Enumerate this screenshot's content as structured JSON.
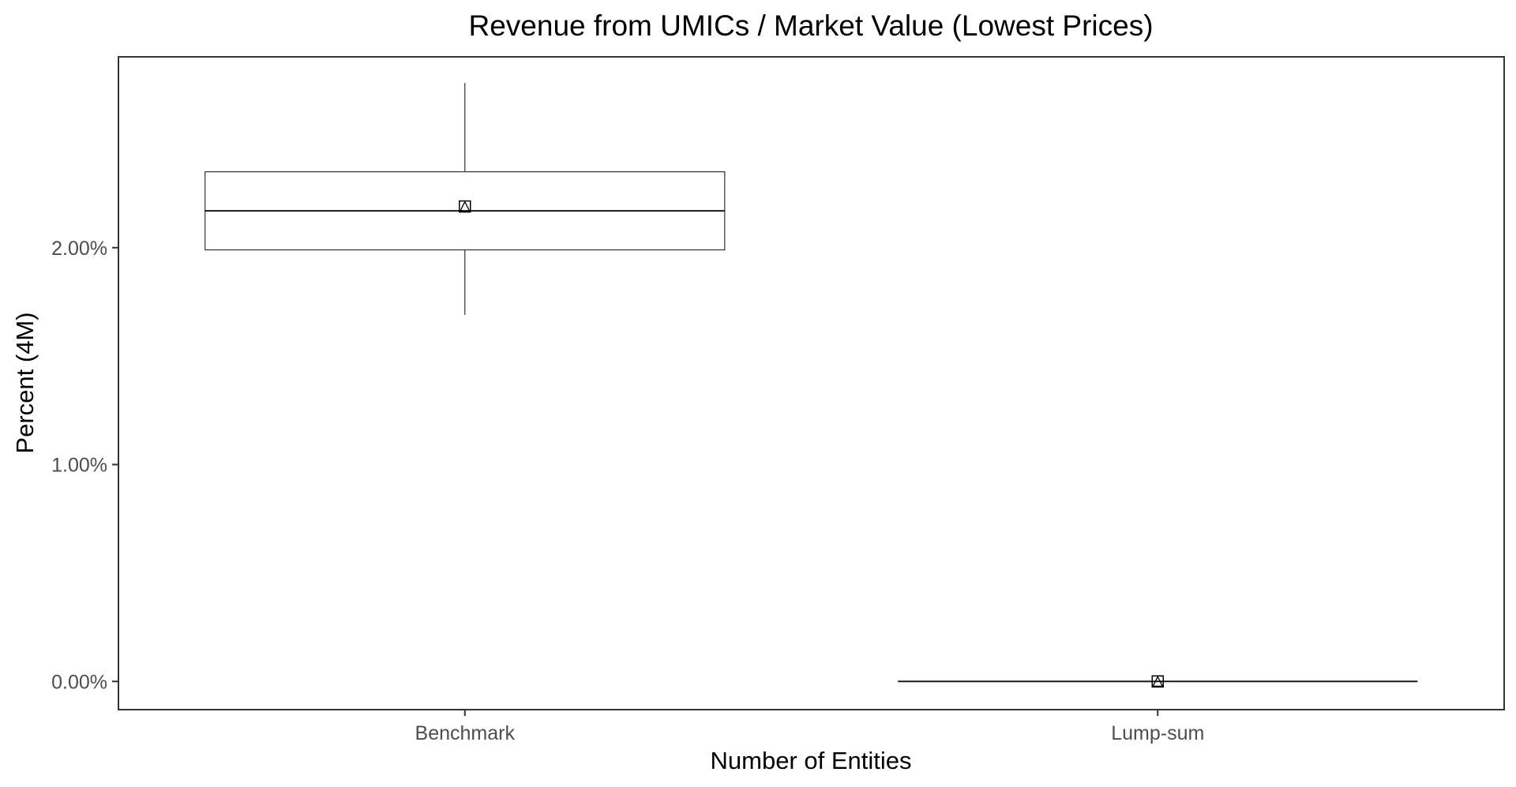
{
  "chart_data": {
    "type": "boxplot",
    "title": "Revenue from UMICs / Market Value (Lowest Prices)",
    "xlabel": "Number of Entities",
    "ylabel": "Percent (4M)",
    "categories": [
      "Benchmark",
      "Lump-sum"
    ],
    "ylim": [
      -0.13,
      2.88
    ],
    "yticks": [
      0,
      1,
      2
    ],
    "ytick_labels": [
      "0.00%",
      "1.00%",
      "2.00%"
    ],
    "unit": "percent",
    "grid": false,
    "legend": "none",
    "boxes": [
      {
        "category": "Benchmark",
        "min": 1.69,
        "q1": 1.99,
        "median": 2.17,
        "q3": 2.35,
        "max": 2.76,
        "mean": 2.19
      },
      {
        "category": "Lump-sum",
        "min": 0.0,
        "q1": 0.0,
        "median": 0.0,
        "q3": 0.0,
        "max": 0.0,
        "mean": 0.0
      }
    ]
  }
}
